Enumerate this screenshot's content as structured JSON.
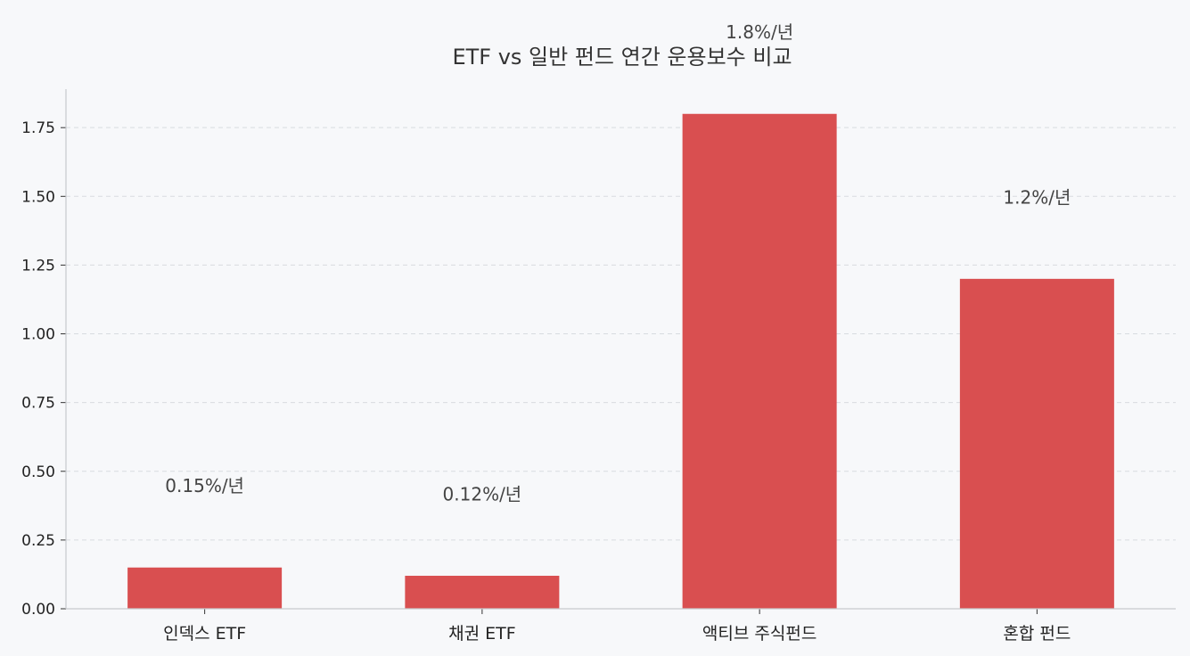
{
  "chart_data": {
    "type": "bar",
    "title": "ETF vs 일반 펀드 연간 운용보수 비교",
    "xlabel": "",
    "ylabel": "",
    "categories": [
      "인덱스 ETF",
      "채권 ETF",
      "액티브 주식펀드",
      "혼합 펀드"
    ],
    "values": [
      0.15,
      0.12,
      1.8,
      1.2
    ],
    "data_labels": [
      "0.15%/년",
      "0.12%/년",
      "1.8%/년",
      "1.2%/년"
    ],
    "ylim": [
      0,
      1.89
    ],
    "yticks": [
      "0.00",
      "0.25",
      "0.50",
      "0.75",
      "1.00",
      "1.25",
      "1.50",
      "1.75"
    ],
    "bar_color": "#d94f50",
    "grid": "horizontal dashed"
  }
}
